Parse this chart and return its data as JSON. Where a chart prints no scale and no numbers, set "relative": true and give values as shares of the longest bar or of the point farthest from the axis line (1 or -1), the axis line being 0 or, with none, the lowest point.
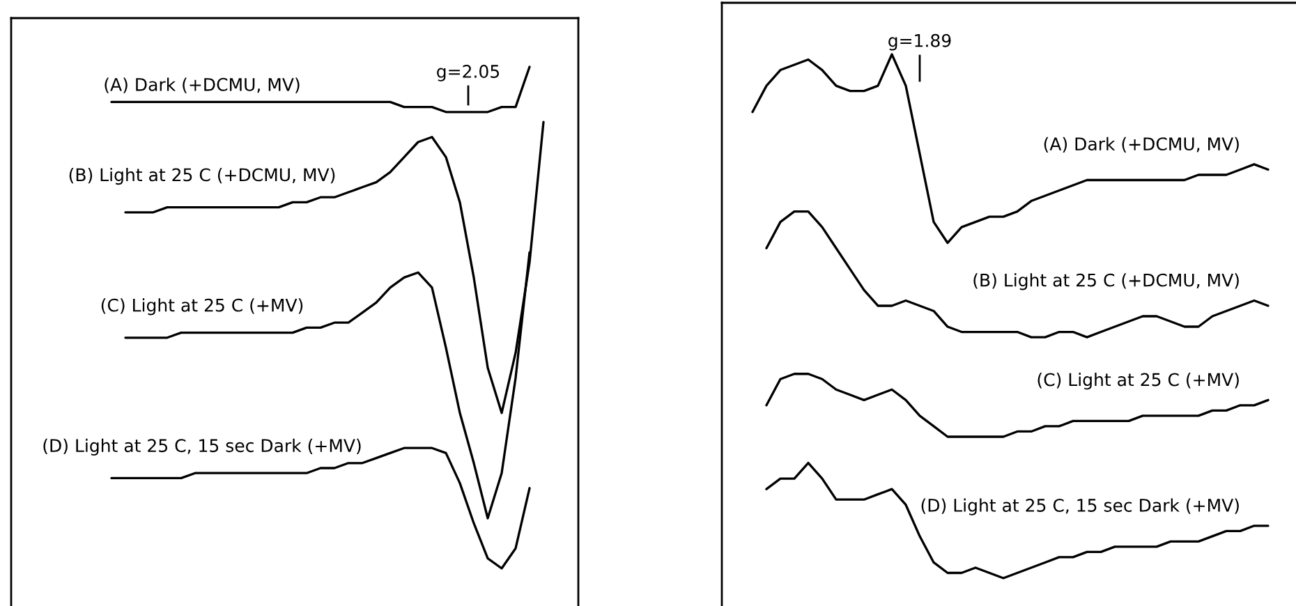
{
  "chart_data": [
    {
      "type": "line",
      "relative": true,
      "color": "#000000",
      "annotations": [
        "g=2.05"
      ],
      "categories": [
        null,
        null,
        null,
        null,
        null,
        null,
        null,
        null,
        null,
        null,
        null,
        null,
        null,
        null,
        null,
        null,
        null,
        null,
        null,
        null,
        null,
        null,
        null,
        null,
        null,
        null,
        null,
        null,
        null,
        null,
        null,
        null
      ],
      "series": [
        {
          "name": "(A) Dark (+DCMU, MV)",
          "values": [
            0.93,
            0.93,
            0.93,
            0.93,
            0.93,
            0.93,
            0.93,
            0.93,
            0.93,
            0.93,
            0.93,
            0.93,
            0.93,
            0.93,
            0.93,
            0.93,
            0.93,
            0.93,
            0.93,
            0.93,
            0.93,
            0.92,
            0.92,
            0.92,
            0.91,
            0.91,
            0.91,
            0.91,
            0.92,
            0.92,
            1.0,
            null
          ]
        },
        {
          "name": "(B) Light at 25 C (+DCMU, MV)",
          "values": [
            null,
            0.71,
            0.71,
            0.71,
            0.72,
            0.72,
            0.72,
            0.72,
            0.72,
            0.72,
            0.72,
            0.72,
            0.72,
            0.73,
            0.73,
            0.74,
            0.74,
            0.75,
            0.76,
            0.77,
            0.79,
            0.82,
            0.85,
            0.86,
            0.82,
            0.73,
            0.58,
            0.4,
            0.31,
            0.43,
            0.61,
            0.89
          ]
        },
        {
          "name": "(C) Light at 25 C (+MV)",
          "values": [
            null,
            0.46,
            0.46,
            0.46,
            0.46,
            0.47,
            0.47,
            0.47,
            0.47,
            0.47,
            0.47,
            0.47,
            0.47,
            0.47,
            0.48,
            0.48,
            0.49,
            0.49,
            0.51,
            0.53,
            0.56,
            0.58,
            0.59,
            0.56,
            0.44,
            0.31,
            0.21,
            0.1,
            0.19,
            0.38,
            0.63,
            null
          ]
        },
        {
          "name": "(D) Light at 25 C, 15 sec Dark (+MV)",
          "values": [
            0.18,
            0.18,
            0.18,
            0.18,
            0.18,
            0.18,
            0.19,
            0.19,
            0.19,
            0.19,
            0.19,
            0.19,
            0.19,
            0.19,
            0.19,
            0.2,
            0.2,
            0.21,
            0.21,
            0.22,
            0.23,
            0.24,
            0.24,
            0.24,
            0.23,
            0.17,
            0.09,
            0.02,
            0.0,
            0.04,
            0.16,
            null
          ]
        }
      ]
    },
    {
      "type": "line",
      "relative": true,
      "color": "#000000",
      "annotations": [
        "g=1.89"
      ],
      "categories": [
        null,
        null,
        null,
        null,
        null,
        null,
        null,
        null,
        null,
        null,
        null,
        null,
        null,
        null,
        null,
        null,
        null,
        null,
        null,
        null,
        null,
        null,
        null,
        null,
        null,
        null,
        null,
        null,
        null,
        null,
        null,
        null,
        null,
        null,
        null,
        null,
        null,
        null
      ],
      "series": [
        {
          "name": "(A) Dark (+DCMU, MV)",
          "values": [
            0.89,
            0.94,
            0.97,
            0.98,
            0.99,
            0.97,
            0.94,
            0.93,
            0.93,
            0.94,
            1.0,
            0.94,
            0.81,
            0.68,
            0.64,
            0.67,
            0.68,
            0.69,
            0.69,
            0.7,
            0.72,
            0.73,
            0.74,
            0.75,
            0.76,
            0.76,
            0.76,
            0.76,
            0.76,
            0.76,
            0.76,
            0.76,
            0.77,
            0.77,
            0.77,
            0.78,
            0.79,
            0.78
          ]
        },
        {
          "name": "(B) Light at 25 C (+DCMU, MV)",
          "values": [
            null,
            0.63,
            0.68,
            0.7,
            0.7,
            0.67,
            0.63,
            0.59,
            0.55,
            0.52,
            0.52,
            0.53,
            0.52,
            0.51,
            0.48,
            0.47,
            0.47,
            0.47,
            0.47,
            0.47,
            0.46,
            0.46,
            0.47,
            0.47,
            0.46,
            0.47,
            0.48,
            0.49,
            0.5,
            0.5,
            0.49,
            0.48,
            0.48,
            0.5,
            0.51,
            0.52,
            0.53,
            0.52
          ]
        },
        {
          "name": "(C) Light at 25 C (+MV)",
          "values": [
            null,
            0.33,
            0.38,
            0.39,
            0.39,
            0.38,
            0.36,
            0.35,
            0.34,
            0.35,
            0.36,
            0.34,
            0.31,
            0.29,
            0.27,
            0.27,
            0.27,
            0.27,
            0.27,
            0.28,
            0.28,
            0.29,
            0.29,
            0.3,
            0.3,
            0.3,
            0.3,
            0.3,
            0.31,
            0.31,
            0.31,
            0.31,
            0.31,
            0.32,
            0.32,
            0.33,
            0.33,
            0.34
          ]
        },
        {
          "name": "(D) Light at 25 C, 15 sec Dark (+MV)",
          "values": [
            null,
            0.17,
            0.19,
            0.19,
            0.22,
            0.19,
            0.15,
            0.15,
            0.15,
            0.16,
            0.17,
            0.14,
            0.08,
            0.03,
            0.01,
            0.01,
            0.02,
            0.01,
            0.0,
            0.01,
            0.02,
            0.03,
            0.04,
            0.04,
            0.05,
            0.05,
            0.06,
            0.06,
            0.06,
            0.06,
            0.07,
            0.07,
            0.07,
            0.08,
            0.09,
            0.09,
            0.1,
            0.1
          ]
        }
      ]
    }
  ]
}
